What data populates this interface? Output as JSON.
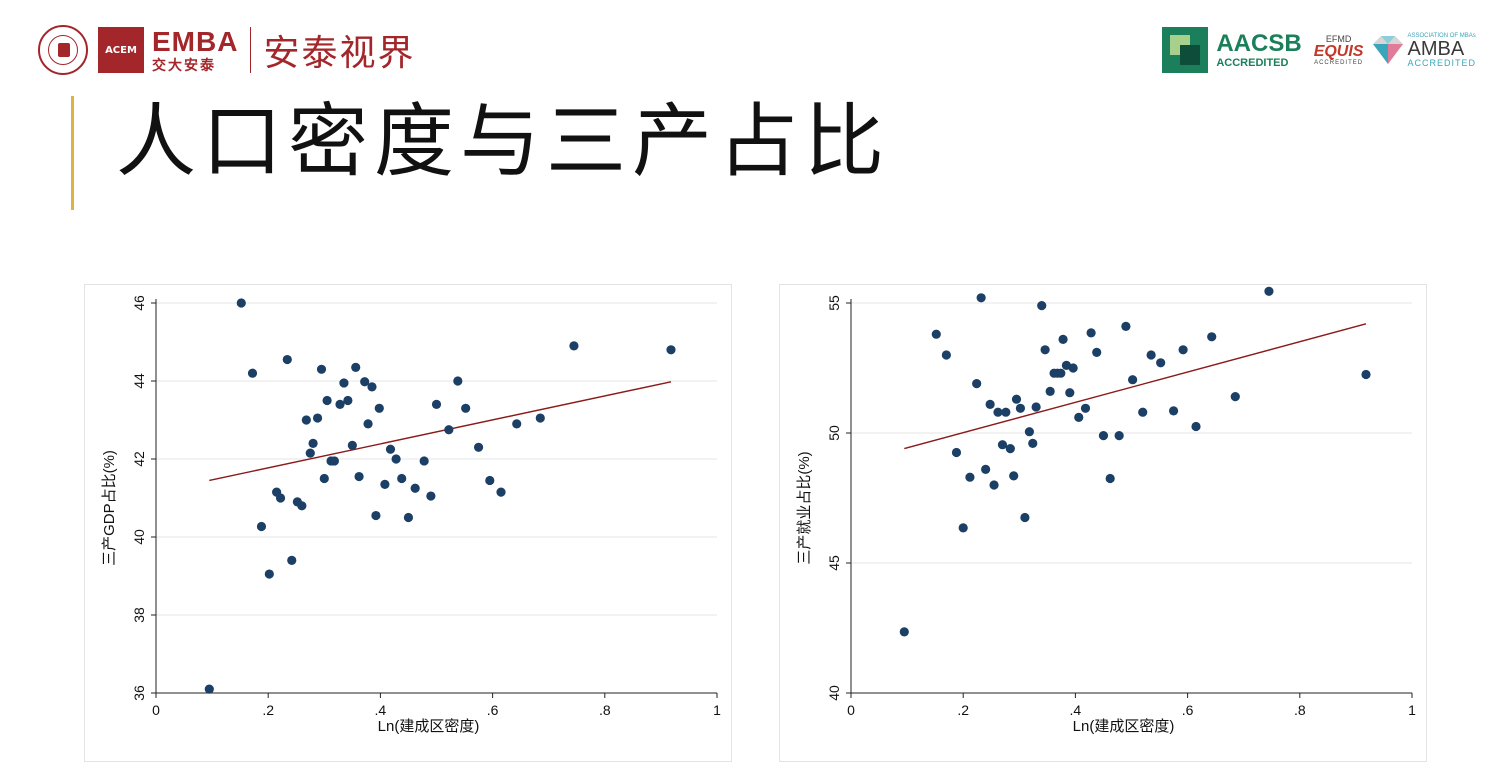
{
  "header": {
    "brand_name": "EMBA",
    "brand_sub": "交大安泰",
    "brand_acem": "ACEM",
    "brand_tagline": "安泰视界",
    "accreditations": [
      {
        "name": "AACSB",
        "sub": "ACCREDITED",
        "color": "#1a7f5a"
      },
      {
        "name": "EQUIS",
        "top": "EFMD",
        "sub": "ACCREDITED",
        "color": "#c0392b"
      },
      {
        "name": "AMBA",
        "top": "ASSOCIATION OF MBAs",
        "sub": "ACCREDITED",
        "color": "#3aa6b9"
      }
    ],
    "brand_color": "#a3262a"
  },
  "page": {
    "title": "人口密度与三产占比",
    "accent_color": "#e0b341"
  },
  "colors": {
    "point": "#1c3f66",
    "fit_line": "#8b1a1a",
    "grid": "#e6e6e6"
  },
  "chart_data": [
    {
      "type": "scatter",
      "title": "",
      "xlabel": "Ln(建成区密度)",
      "ylabel": "三产GDP占比(%)",
      "xlim": [
        0,
        1
      ],
      "ylim": [
        36,
        46
      ],
      "xticks": [
        0,
        0.2,
        0.4,
        0.6,
        0.8,
        1
      ],
      "xtick_labels": [
        "0",
        ".2",
        ".4",
        ".6",
        ".8",
        "1"
      ],
      "yticks": [
        36,
        38,
        40,
        42,
        44,
        46
      ],
      "ytick_labels": [
        "36",
        "38",
        "40",
        "42",
        "44",
        "46"
      ],
      "grid": true,
      "fit_line": {
        "x": [
          0.095,
          0.918
        ],
        "y": [
          41.45,
          43.98
        ]
      },
      "points": [
        [
          0.095,
          36.1
        ],
        [
          0.152,
          46.0
        ],
        [
          0.172,
          44.2
        ],
        [
          0.188,
          40.27
        ],
        [
          0.202,
          39.05
        ],
        [
          0.215,
          41.15
        ],
        [
          0.222,
          41.0
        ],
        [
          0.234,
          44.55
        ],
        [
          0.242,
          39.4
        ],
        [
          0.252,
          40.9
        ],
        [
          0.26,
          40.8
        ],
        [
          0.268,
          43.0
        ],
        [
          0.275,
          42.15
        ],
        [
          0.28,
          42.4
        ],
        [
          0.288,
          43.05
        ],
        [
          0.295,
          44.3
        ],
        [
          0.3,
          41.5
        ],
        [
          0.305,
          43.5
        ],
        [
          0.312,
          41.95
        ],
        [
          0.318,
          41.95
        ],
        [
          0.328,
          43.4
        ],
        [
          0.335,
          43.95
        ],
        [
          0.342,
          43.5
        ],
        [
          0.35,
          42.35
        ],
        [
          0.356,
          44.35
        ],
        [
          0.362,
          41.55
        ],
        [
          0.372,
          43.98
        ],
        [
          0.378,
          42.9
        ],
        [
          0.385,
          43.85
        ],
        [
          0.392,
          40.55
        ],
        [
          0.398,
          43.3
        ],
        [
          0.408,
          41.35
        ],
        [
          0.418,
          42.25
        ],
        [
          0.428,
          42.0
        ],
        [
          0.438,
          41.5
        ],
        [
          0.45,
          40.5
        ],
        [
          0.462,
          41.25
        ],
        [
          0.478,
          41.95
        ],
        [
          0.49,
          41.05
        ],
        [
          0.5,
          43.4
        ],
        [
          0.522,
          42.75
        ],
        [
          0.538,
          44.0
        ],
        [
          0.552,
          43.3
        ],
        [
          0.575,
          42.3
        ],
        [
          0.595,
          41.45
        ],
        [
          0.615,
          41.15
        ],
        [
          0.643,
          42.9
        ],
        [
          0.685,
          43.05
        ],
        [
          0.745,
          44.9
        ],
        [
          0.918,
          44.8
        ]
      ]
    },
    {
      "type": "scatter",
      "title": "",
      "xlabel": "Ln(建成区密度)",
      "ylabel": "三产就业占比(%)",
      "xlim": [
        0,
        1
      ],
      "ylim": [
        40,
        55
      ],
      "xticks": [
        0,
        0.2,
        0.4,
        0.6,
        0.8,
        1
      ],
      "xtick_labels": [
        "0",
        ".2",
        ".4",
        ".6",
        ".8",
        "1"
      ],
      "yticks": [
        40,
        45,
        50,
        55
      ],
      "ytick_labels": [
        "40",
        "45",
        "50",
        "55"
      ],
      "grid": true,
      "fit_line": {
        "x": [
          0.095,
          0.918
        ],
        "y": [
          49.4,
          54.2
        ]
      },
      "points": [
        [
          0.095,
          42.35
        ],
        [
          0.152,
          53.8
        ],
        [
          0.17,
          53.0
        ],
        [
          0.188,
          49.25
        ],
        [
          0.2,
          46.35
        ],
        [
          0.212,
          48.3
        ],
        [
          0.224,
          51.9
        ],
        [
          0.232,
          55.2
        ],
        [
          0.24,
          48.6
        ],
        [
          0.248,
          51.1
        ],
        [
          0.255,
          48.0
        ],
        [
          0.262,
          50.8
        ],
        [
          0.27,
          49.55
        ],
        [
          0.276,
          50.8
        ],
        [
          0.284,
          49.4
        ],
        [
          0.29,
          48.35
        ],
        [
          0.295,
          51.3
        ],
        [
          0.302,
          50.95
        ],
        [
          0.31,
          46.75
        ],
        [
          0.318,
          50.05
        ],
        [
          0.324,
          49.6
        ],
        [
          0.33,
          51.0
        ],
        [
          0.34,
          54.9
        ],
        [
          0.346,
          53.2
        ],
        [
          0.355,
          51.6
        ],
        [
          0.362,
          52.3
        ],
        [
          0.368,
          52.3
        ],
        [
          0.374,
          52.3
        ],
        [
          0.378,
          53.6
        ],
        [
          0.384,
          52.6
        ],
        [
          0.39,
          51.55
        ],
        [
          0.396,
          52.5
        ],
        [
          0.406,
          50.6
        ],
        [
          0.418,
          50.95
        ],
        [
          0.428,
          53.85
        ],
        [
          0.438,
          53.1
        ],
        [
          0.45,
          49.9
        ],
        [
          0.462,
          48.25
        ],
        [
          0.478,
          49.9
        ],
        [
          0.49,
          54.1
        ],
        [
          0.502,
          52.05
        ],
        [
          0.52,
          50.8
        ],
        [
          0.535,
          53.0
        ],
        [
          0.552,
          52.7
        ],
        [
          0.575,
          50.85
        ],
        [
          0.592,
          53.2
        ],
        [
          0.615,
          50.25
        ],
        [
          0.643,
          53.7
        ],
        [
          0.685,
          51.4
        ],
        [
          0.745,
          55.45
        ],
        [
          0.918,
          52.25
        ]
      ]
    }
  ]
}
